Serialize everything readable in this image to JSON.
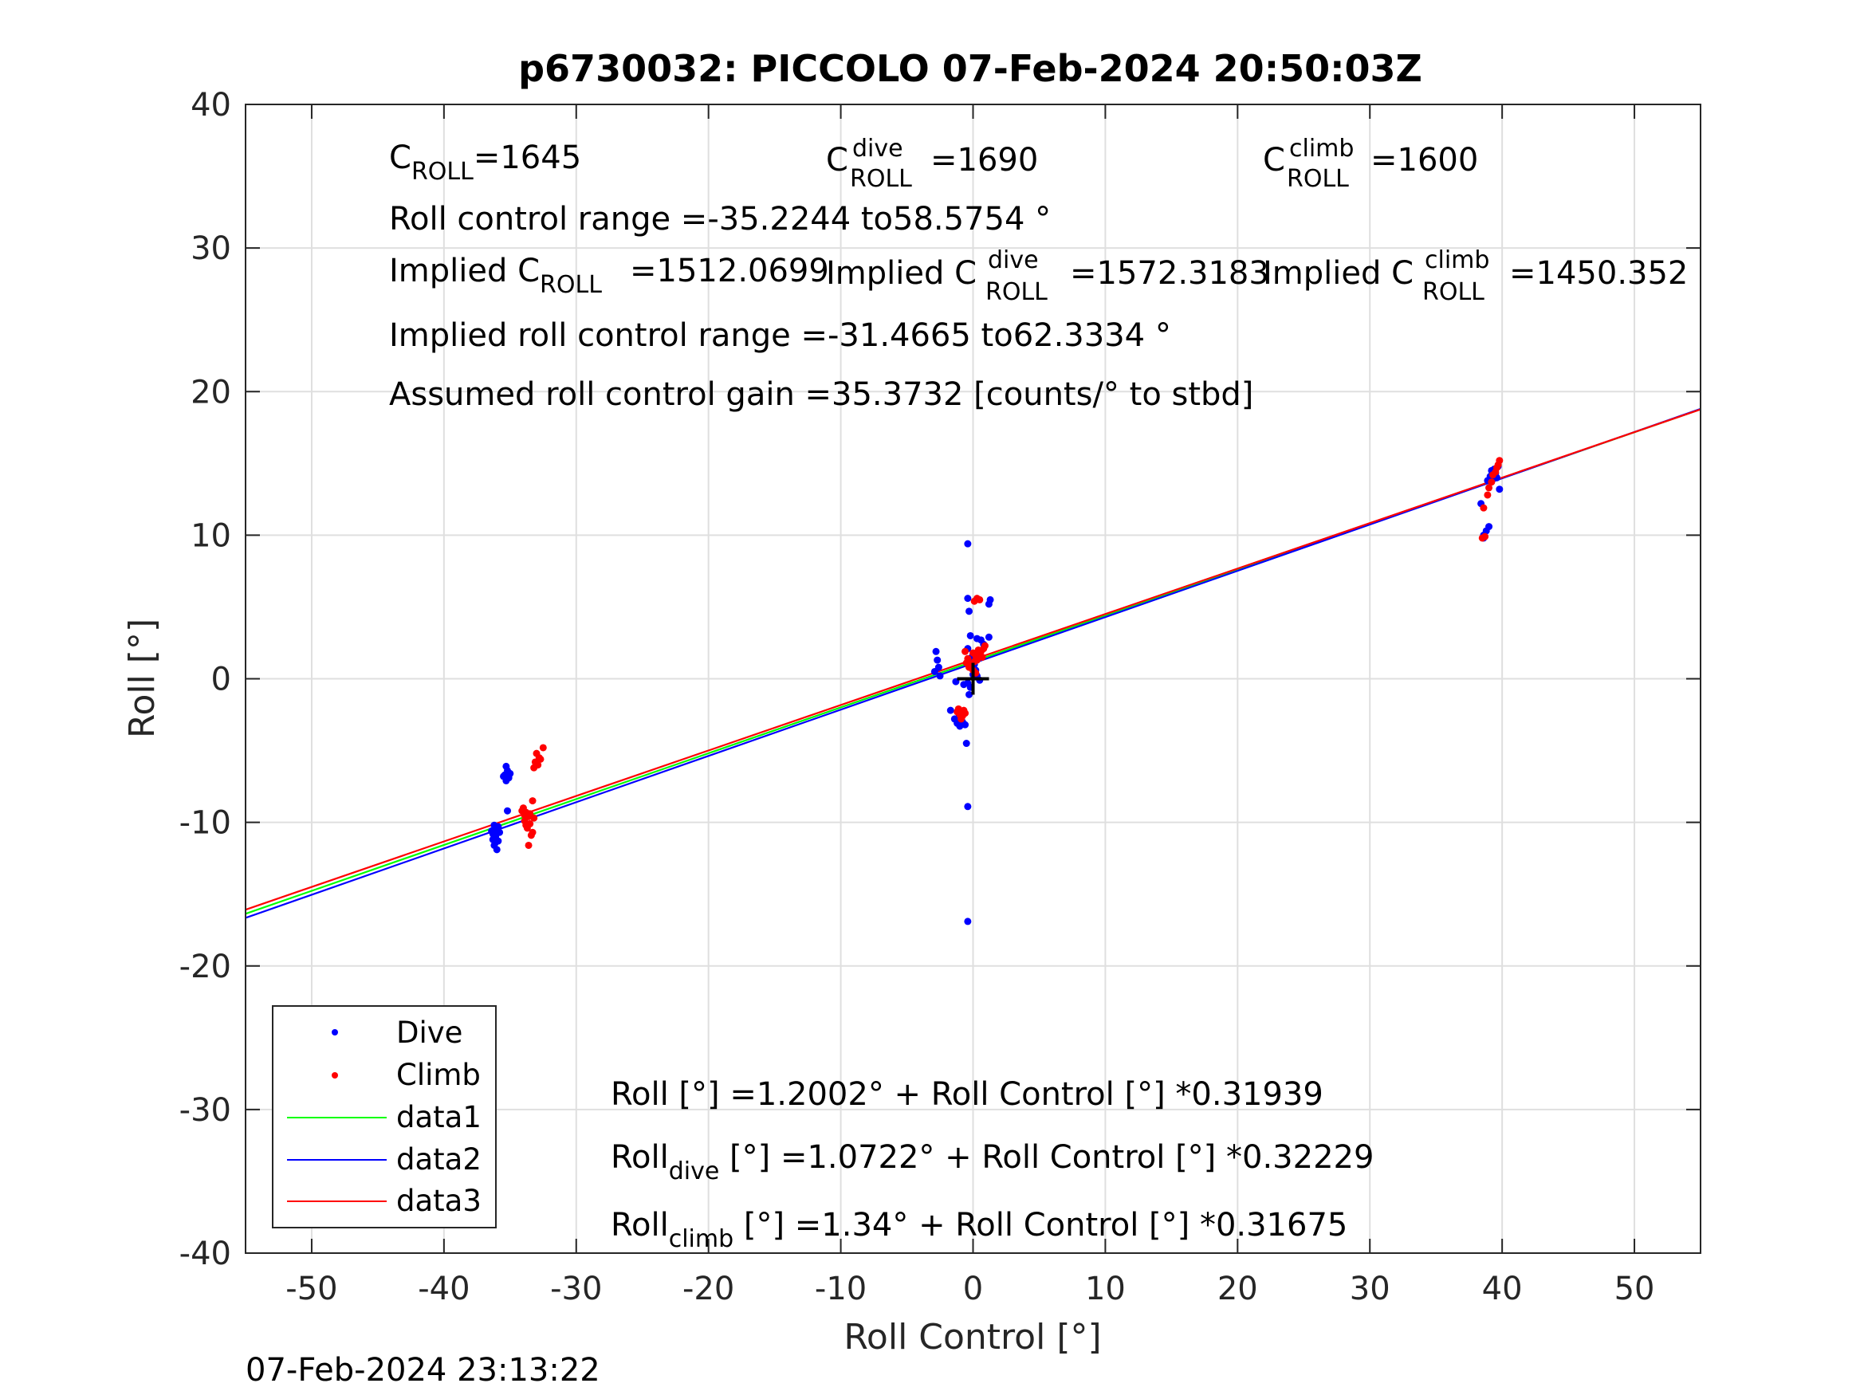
{
  "chart_data": {
    "type": "scatter",
    "title": "p6730032: PICCOLO 07-Feb-2024 20:50:03Z",
    "xlabel": "Roll Control [°]",
    "ylabel": "Roll [°]",
    "xlim": [
      -55,
      55
    ],
    "ylim": [
      -40,
      40
    ],
    "xticks": [
      -50,
      -40,
      -30,
      -20,
      -10,
      0,
      10,
      20,
      30,
      40,
      50
    ],
    "yticks": [
      -40,
      -30,
      -20,
      -10,
      0,
      10,
      20,
      30,
      40
    ],
    "grid": true,
    "legend_position": "bottom-left",
    "footer": "07-Feb-2024 23:13:22",
    "center_marker": {
      "x": 0,
      "y": 0,
      "symbol": "+"
    },
    "annotations": {
      "c_roll": {
        "main": "C",
        "sub": "ROLL",
        "rest": "=1645"
      },
      "c_roll_dive": {
        "main": "C",
        "sup": "dive",
        "sub": "ROLL",
        "rest": "=1690"
      },
      "c_roll_climb": {
        "main": "C",
        "sup": "climb",
        "sub": "ROLL",
        "rest": "=1600"
      },
      "roll_control_range": "Roll control range =-35.2244 to58.5754 °",
      "implied_c_roll": {
        "pre": "Implied C",
        "sub": "ROLL",
        "rest": "=1512.0699"
      },
      "implied_c_roll_dive": {
        "pre": "Implied C",
        "sup": "dive",
        "sub": "ROLL",
        "rest": "=1572.3183"
      },
      "implied_c_roll_climb": {
        "pre": "Implied C",
        "sup": "climb",
        "sub": "ROLL",
        "rest": "=1450.352"
      },
      "implied_range": "Implied roll control range =-31.4665 to62.3334 °",
      "assumed_gain": "Assumed roll control gain =35.3732 [counts/° to stbd]",
      "fit_all": "Roll [°] =1.2002° + Roll Control [°] *0.31939",
      "fit_dive": {
        "pre": "Roll",
        "sub": "dive",
        "rest": " [°] =1.0722° + Roll Control [°] *0.32229"
      },
      "fit_climb": {
        "pre": "Roll",
        "sub": "climb",
        "rest": " [°] =1.34° + Roll Control [°] *0.31675"
      }
    },
    "series": [
      {
        "name": "Dive",
        "kind": "points",
        "color": "#0000ff",
        "points": [
          [
            -36.2,
            -10.2
          ],
          [
            -36.0,
            -10.5
          ],
          [
            -36.3,
            -10.8
          ],
          [
            -36.1,
            -11.0
          ],
          [
            -35.9,
            -11.3
          ],
          [
            -36.2,
            -11.6
          ],
          [
            -36.0,
            -11.9
          ],
          [
            -36.4,
            -10.6
          ],
          [
            -36.1,
            -10.9
          ],
          [
            -35.8,
            -10.7
          ],
          [
            -36.3,
            -11.2
          ],
          [
            -36.0,
            -10.4
          ],
          [
            -36.2,
            -11.1
          ],
          [
            -35.9,
            -10.3
          ],
          [
            -36.1,
            -11.4
          ],
          [
            -35.3,
            -6.1
          ],
          [
            -35.2,
            -6.4
          ],
          [
            -35.4,
            -6.7
          ],
          [
            -35.1,
            -6.9
          ],
          [
            -35.3,
            -7.1
          ],
          [
            -35.0,
            -6.6
          ],
          [
            -35.5,
            -6.8
          ],
          [
            -35.2,
            -9.2
          ],
          [
            -2.8,
            1.9
          ],
          [
            -2.7,
            1.3
          ],
          [
            -2.6,
            0.8
          ],
          [
            -2.5,
            0.2
          ],
          [
            -2.9,
            0.5
          ],
          [
            -1.7,
            -2.2
          ],
          [
            -1.4,
            -2.8
          ],
          [
            -1.2,
            -3.1
          ],
          [
            -1.0,
            -3.3
          ],
          [
            -0.8,
            -3.0
          ],
          [
            -0.6,
            -3.2
          ],
          [
            -0.9,
            -2.5
          ],
          [
            -1.1,
            -2.7
          ],
          [
            -0.4,
            -0.3
          ],
          [
            -0.7,
            -0.4
          ],
          [
            -1.3,
            -0.2
          ],
          [
            -0.5,
            -4.5
          ],
          [
            -0.3,
            -1.1
          ],
          [
            -0.4,
            9.4
          ],
          [
            -0.4,
            5.6
          ],
          [
            -0.3,
            4.7
          ],
          [
            -0.2,
            3.0
          ],
          [
            -0.4,
            2.1
          ],
          [
            -0.1,
            1.5
          ],
          [
            0.1,
            1.0
          ],
          [
            0.2,
            0.6
          ],
          [
            0.3,
            0.2
          ],
          [
            0.5,
            -0.1
          ],
          [
            0.3,
            2.8
          ],
          [
            0.6,
            2.7
          ],
          [
            0.8,
            2.4
          ],
          [
            1.2,
            2.9
          ],
          [
            1.3,
            5.5
          ],
          [
            1.2,
            5.2
          ],
          [
            -0.4,
            -8.9
          ],
          [
            -0.4,
            -16.9
          ],
          [
            -0.2,
            -0.6
          ],
          [
            0.0,
            0.3
          ],
          [
            38.4,
            12.2
          ],
          [
            38.6,
            10.0
          ],
          [
            38.8,
            10.3
          ],
          [
            39.0,
            10.6
          ],
          [
            38.6,
            9.8
          ],
          [
            38.9,
            13.8
          ],
          [
            39.1,
            14.1
          ],
          [
            39.2,
            14.5
          ],
          [
            39.3,
            13.9
          ],
          [
            39.5,
            14.3
          ],
          [
            39.7,
            14.8
          ],
          [
            39.8,
            13.2
          ],
          [
            39.4,
            14.6
          ],
          [
            39.6,
            14.0
          ]
        ]
      },
      {
        "name": "Climb",
        "kind": "points",
        "color": "#ff0000",
        "points": [
          [
            -34.0,
            -9.0
          ],
          [
            -33.8,
            -9.3
          ],
          [
            -33.6,
            -9.6
          ],
          [
            -33.9,
            -9.9
          ],
          [
            -33.5,
            -10.1
          ],
          [
            -33.7,
            -10.4
          ],
          [
            -33.3,
            -10.7
          ],
          [
            -33.4,
            -10.9
          ],
          [
            -33.6,
            -11.6
          ],
          [
            -33.9,
            -9.5
          ],
          [
            -34.1,
            -9.2
          ],
          [
            -33.2,
            -9.7
          ],
          [
            -33.5,
            -9.4
          ],
          [
            -33.8,
            -10.2
          ],
          [
            -33.3,
            -8.5
          ],
          [
            -33.0,
            -5.2
          ],
          [
            -32.8,
            -5.5
          ],
          [
            -33.1,
            -5.8
          ],
          [
            -32.9,
            -6.0
          ],
          [
            -33.2,
            -6.2
          ],
          [
            -32.5,
            -4.8
          ],
          [
            -32.7,
            -5.6
          ],
          [
            -1.2,
            -2.3
          ],
          [
            -1.0,
            -2.5
          ],
          [
            -0.8,
            -2.6
          ],
          [
            -0.6,
            -2.4
          ],
          [
            -0.9,
            -2.8
          ],
          [
            -1.1,
            -2.1
          ],
          [
            -0.7,
            -2.2
          ],
          [
            -0.6,
            1.9
          ],
          [
            -0.4,
            1.4
          ],
          [
            -0.2,
            1.0
          ],
          [
            0.0,
            0.6
          ],
          [
            0.2,
            1.6
          ],
          [
            0.4,
            2.0
          ],
          [
            0.1,
            1.2
          ],
          [
            -0.3,
            0.8
          ],
          [
            0.3,
            1.3
          ],
          [
            0.5,
            1.7
          ],
          [
            0.6,
            1.9
          ],
          [
            0.7,
            1.5
          ],
          [
            0.8,
            2.1
          ],
          [
            -0.5,
            1.1
          ],
          [
            0.2,
            0.4
          ],
          [
            0.0,
            1.8
          ],
          [
            0.9,
            2.3
          ],
          [
            0.1,
            5.4
          ],
          [
            0.3,
            5.6
          ],
          [
            0.5,
            5.5
          ],
          [
            38.5,
            9.8
          ],
          [
            38.7,
            9.9
          ],
          [
            38.6,
            11.9
          ],
          [
            38.9,
            12.8
          ],
          [
            39.0,
            13.3
          ],
          [
            39.2,
            13.7
          ],
          [
            39.3,
            14.2
          ],
          [
            39.5,
            14.4
          ],
          [
            39.6,
            14.7
          ],
          [
            39.8,
            15.2
          ],
          [
            39.7,
            14.9
          ]
        ]
      },
      {
        "name": "data1",
        "kind": "line",
        "color": "#00ff00",
        "intercept": 1.2002,
        "slope": 0.31939
      },
      {
        "name": "data2",
        "kind": "line",
        "color": "#0000ff",
        "intercept": 1.0722,
        "slope": 0.32229
      },
      {
        "name": "data3",
        "kind": "line",
        "color": "#ff0000",
        "intercept": 1.34,
        "slope": 0.31675
      }
    ]
  }
}
